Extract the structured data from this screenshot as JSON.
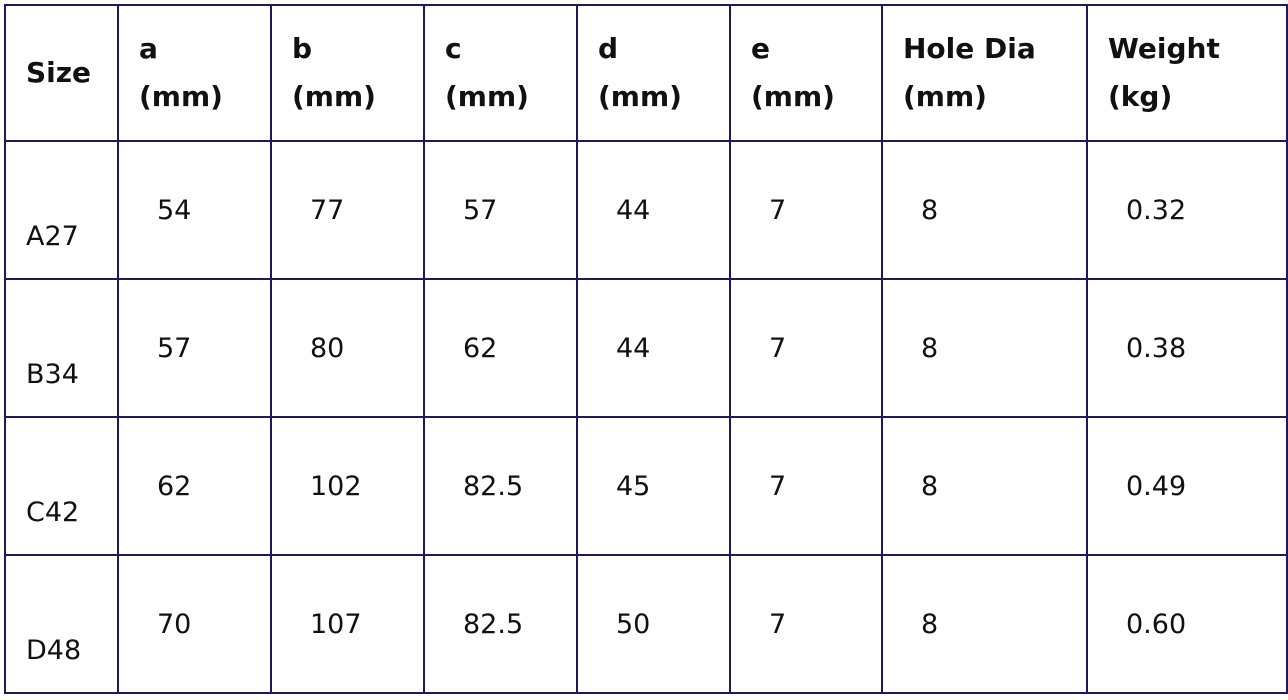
{
  "table": {
    "header": [
      [
        "Size"
      ],
      [
        "a",
        "(mm)"
      ],
      [
        "b",
        "(mm)"
      ],
      [
        "c",
        "(mm)"
      ],
      [
        "d",
        "(mm)"
      ],
      [
        "e",
        "(mm)"
      ],
      [
        "Hole Dia",
        "(mm)"
      ],
      [
        "Weight",
        "(kg)"
      ]
    ],
    "rows": [
      [
        "A27",
        "54",
        "77",
        "57",
        "44",
        "7",
        "8",
        "0.32"
      ],
      [
        "B34",
        "57",
        "80",
        "62",
        "44",
        "7",
        "8",
        "0.38"
      ],
      [
        "C42",
        "62",
        "102",
        "82.5",
        "45",
        "7",
        "8",
        "0.49"
      ],
      [
        "D48",
        "70",
        "107",
        "82.5",
        "50",
        "7",
        "8",
        "0.60"
      ]
    ]
  }
}
